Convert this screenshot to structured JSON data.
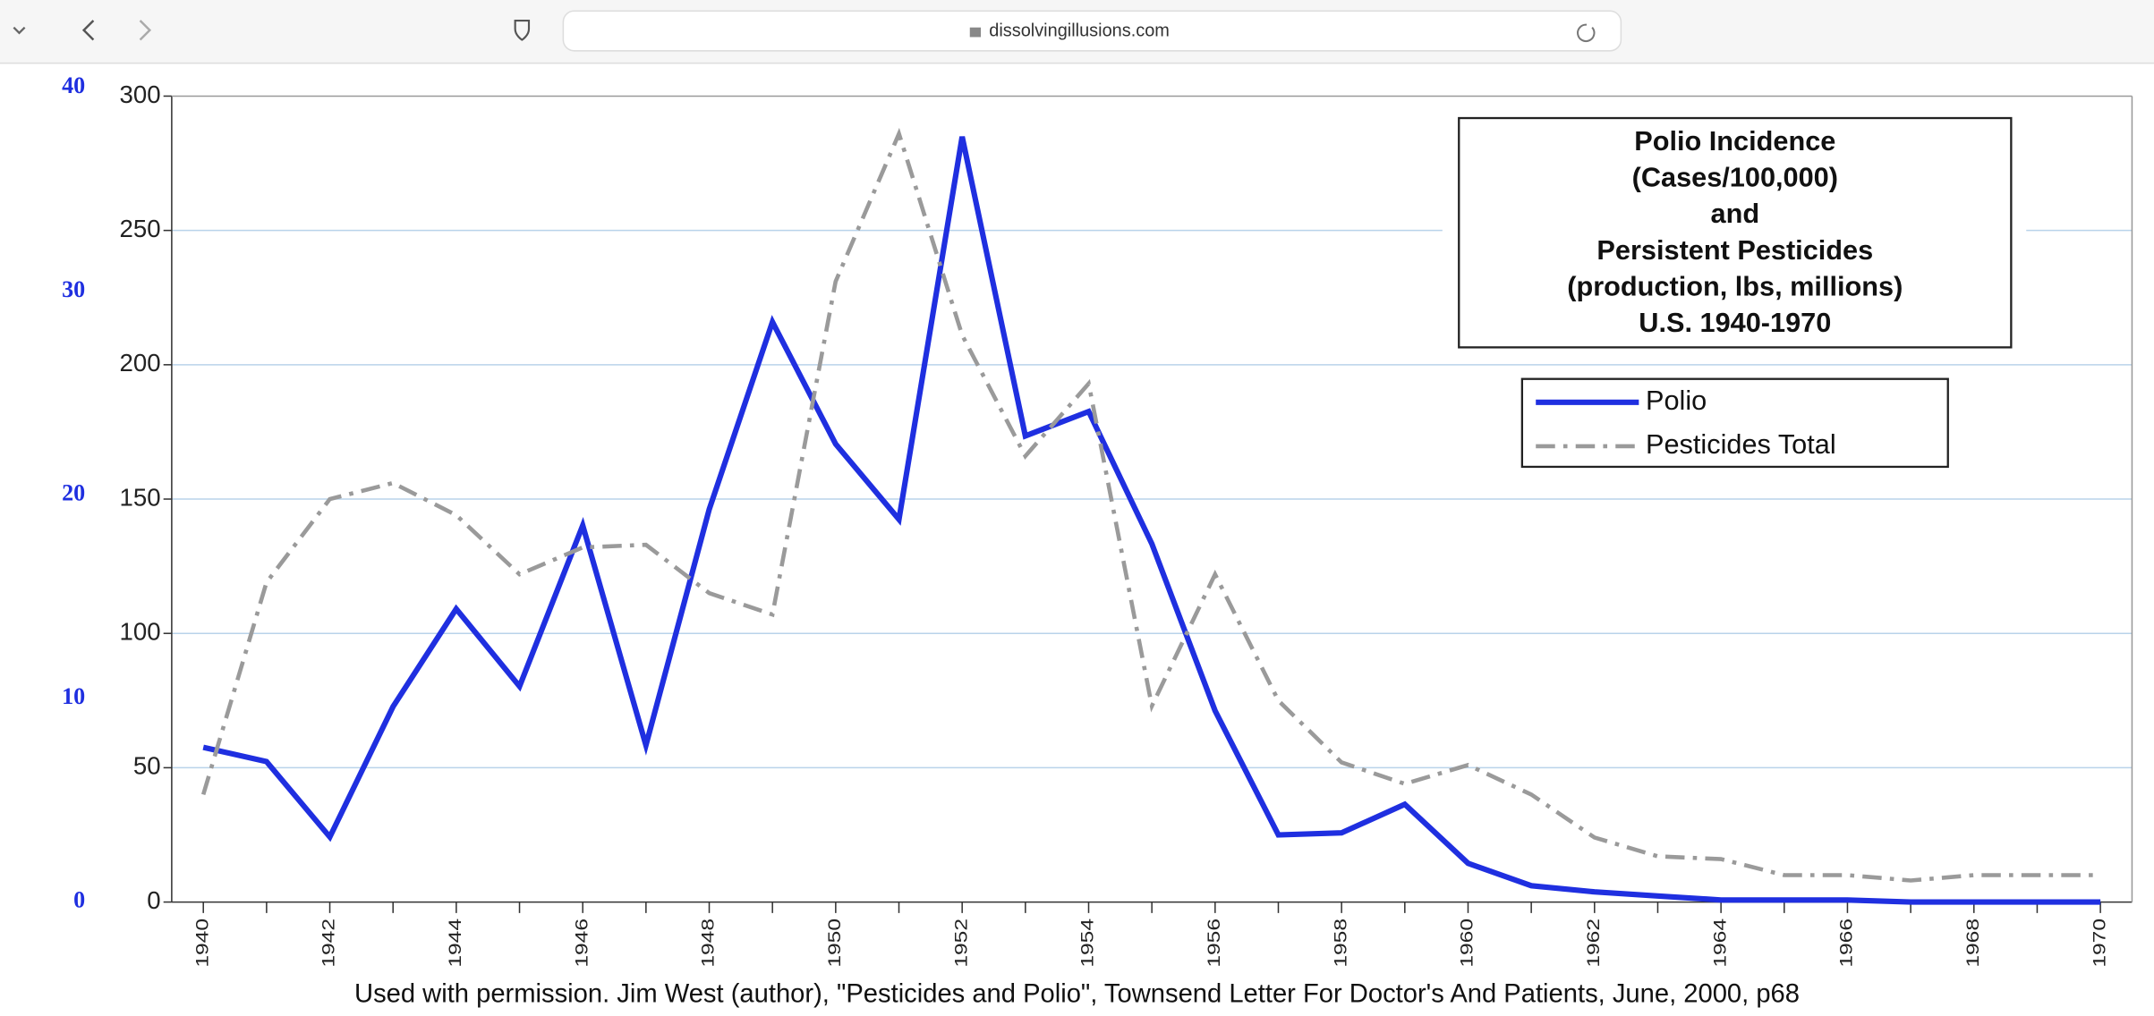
{
  "browser": {
    "url": "dissolvingillusions.com"
  },
  "chart_data": {
    "type": "line",
    "title_lines": [
      "Polio Incidence",
      "(Cases/100,000)",
      "and",
      "Persistent Pesticides",
      "(production, lbs, millions)",
      "U.S.  1940-1970"
    ],
    "x": [
      1940,
      1941,
      1942,
      1943,
      1944,
      1945,
      1946,
      1947,
      1948,
      1949,
      1950,
      1951,
      1952,
      1953,
      1954,
      1955,
      1956,
      1957,
      1958,
      1959,
      1960,
      1961,
      1962,
      1963,
      1964,
      1965,
      1966,
      1967,
      1968,
      1969,
      1970
    ],
    "xlim": [
      1939.5,
      1970.5
    ],
    "xticks": [
      1940,
      1942,
      1944,
      1946,
      1948,
      1950,
      1952,
      1954,
      1956,
      1958,
      1960,
      1962,
      1964,
      1966,
      1968,
      1970
    ],
    "ylim": [
      0,
      300
    ],
    "yticks": [
      0,
      50,
      100,
      150,
      200,
      250,
      300
    ],
    "y2lim": [
      0,
      40
    ],
    "y2ticks": [
      0,
      10,
      20,
      30,
      40
    ],
    "grid": true,
    "legend": "upper right",
    "series": [
      {
        "name": "Polio",
        "color": "#1f2fe0",
        "axis": "y2",
        "values": [
          7.6,
          6.9,
          3.2,
          9.6,
          14.4,
          10.6,
          18.5,
          7.7,
          19.3,
          28.5,
          22.5,
          18.8,
          37.6,
          22.9,
          24.1,
          17.6,
          9.4,
          3.3,
          3.4,
          4.8,
          1.9,
          0.8,
          0.5,
          0.3,
          0.1,
          0.1,
          0.1,
          0,
          0,
          0,
          0
        ]
      },
      {
        "name": "Pesticides Total",
        "color": "#9a9a9a",
        "values": [
          40,
          119,
          150,
          156,
          144,
          122,
          132,
          133,
          115,
          107,
          231,
          286,
          211,
          166,
          193,
          73,
          122,
          75,
          52,
          44,
          51,
          40,
          24,
          17,
          16,
          10,
          10,
          8,
          10,
          10,
          10
        ]
      }
    ],
    "source": "Used with permission.  Jim West (author), \"Pesticides and Polio\", Townsend Letter For Doctor's And Patients, June, 2000, p68"
  }
}
